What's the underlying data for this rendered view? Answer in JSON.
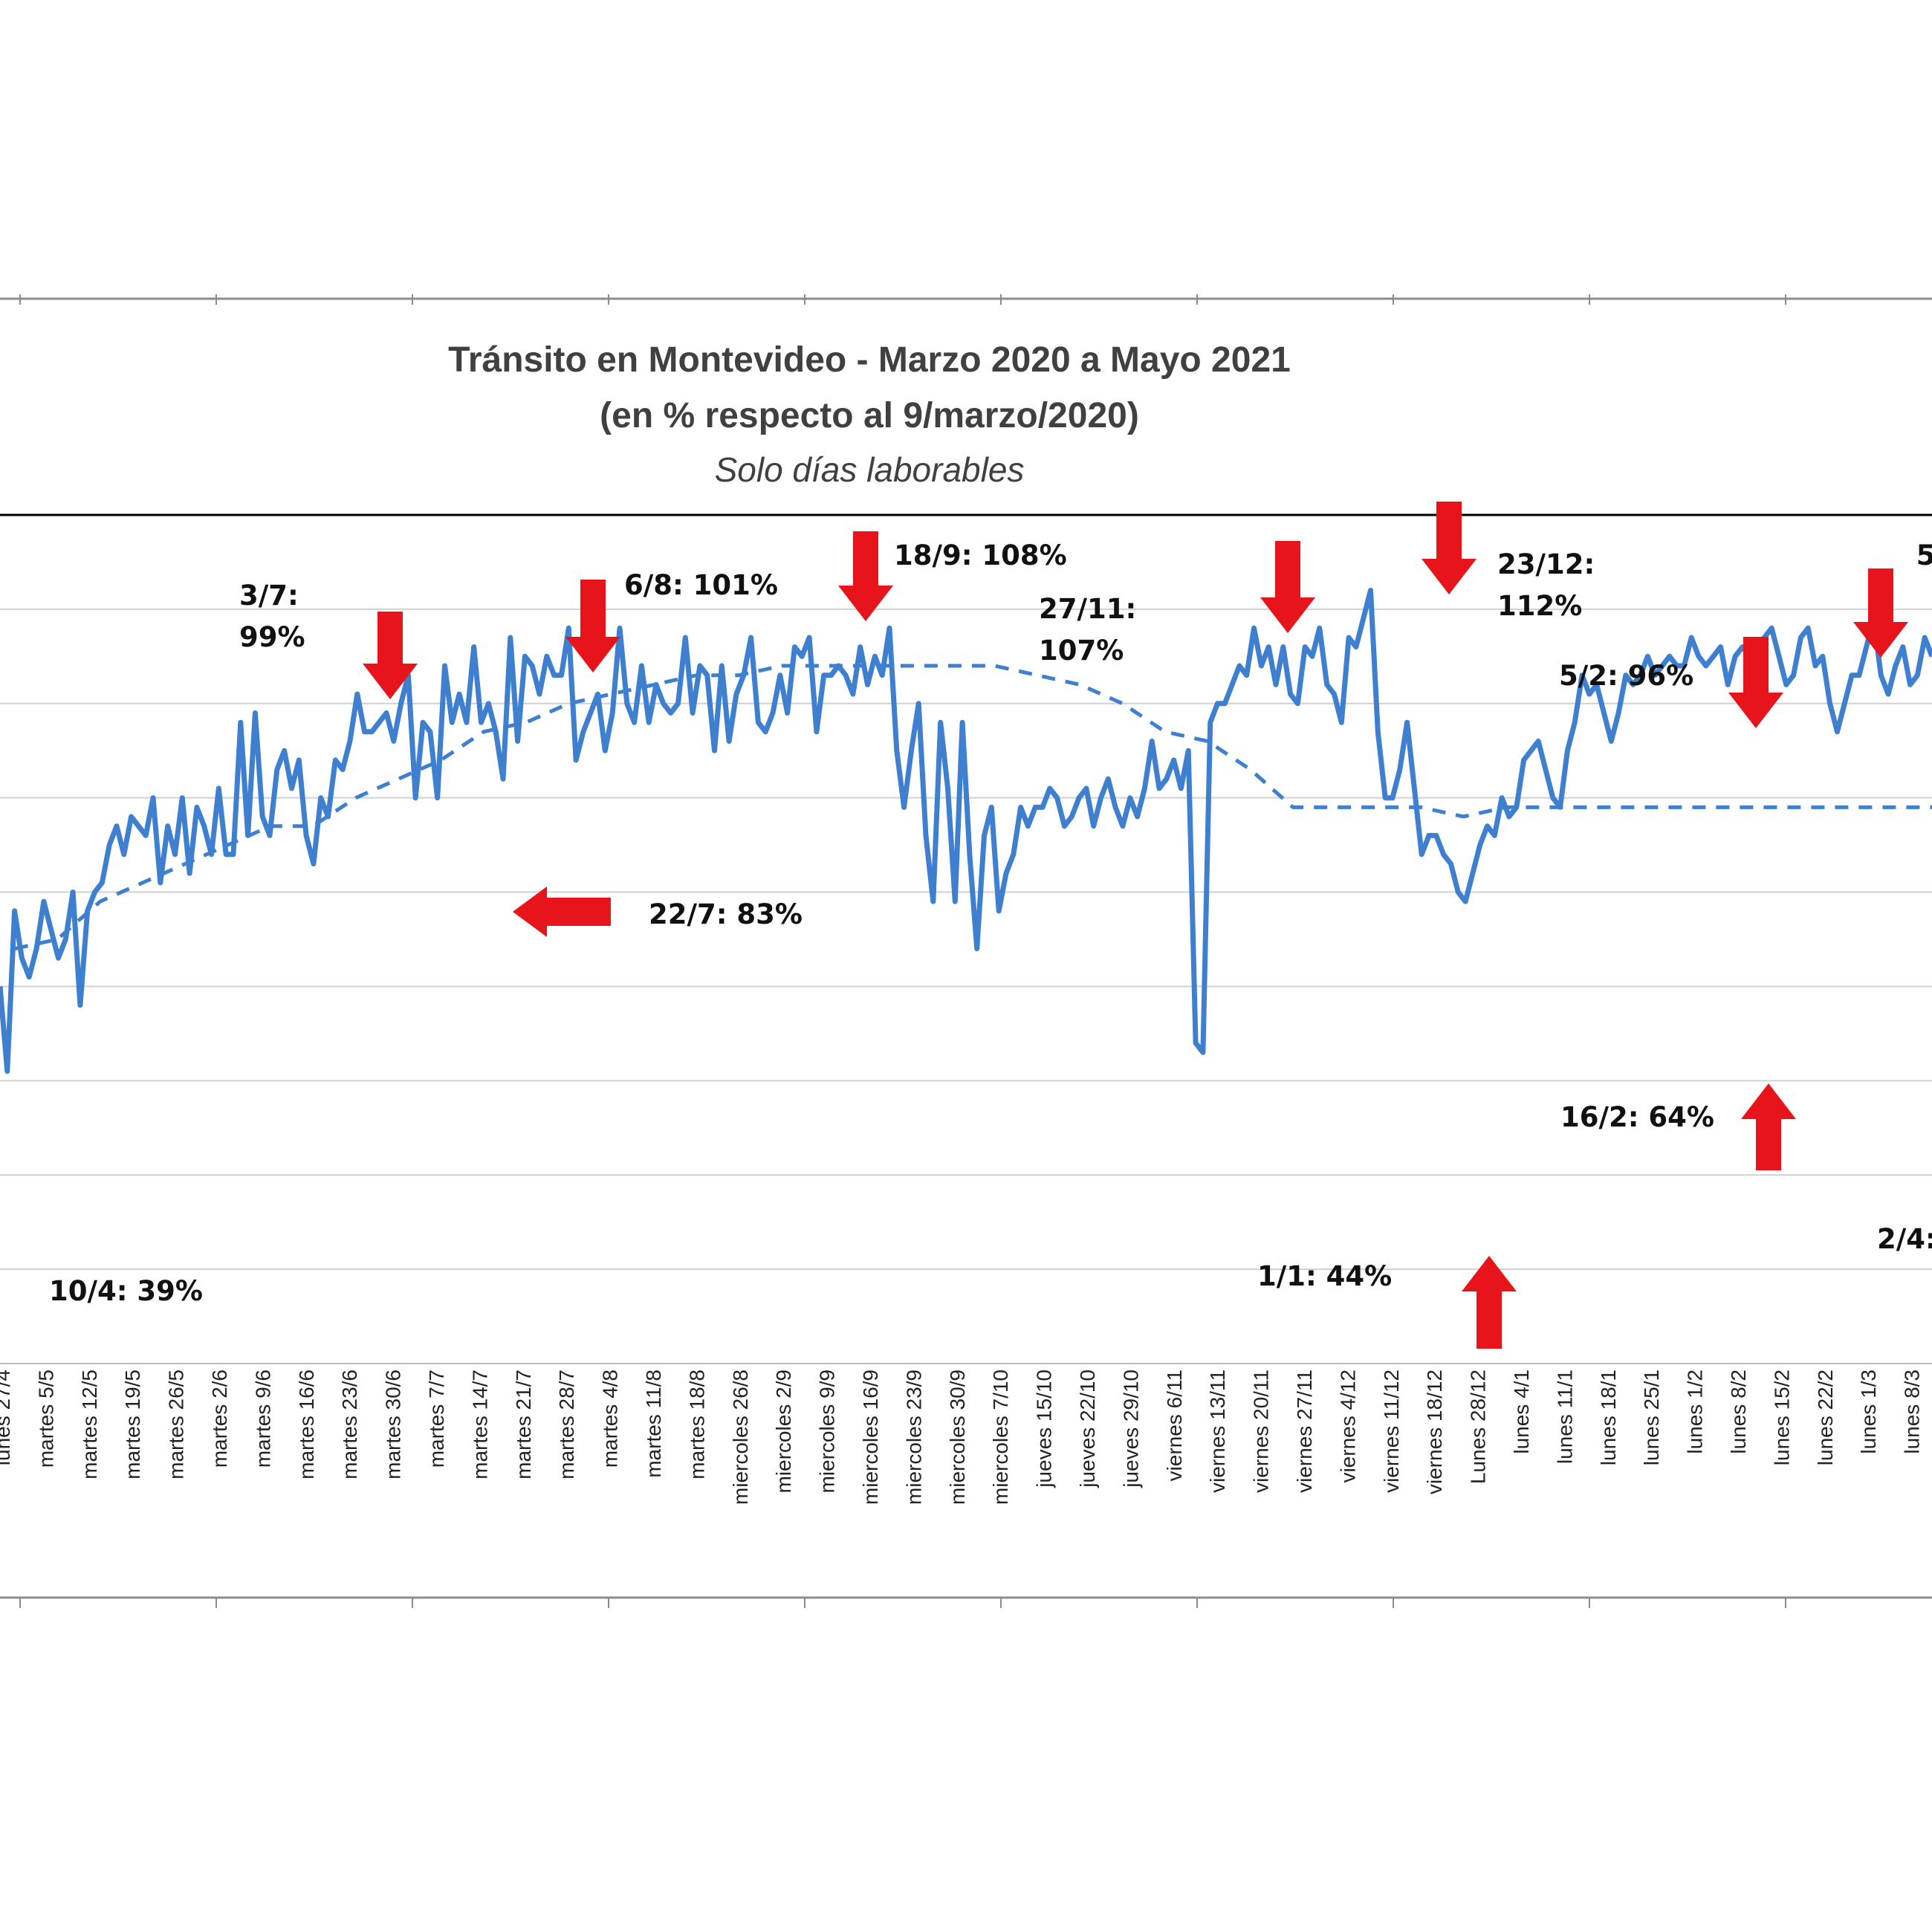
{
  "chart_data": {
    "type": "line",
    "title": "Tránsito en Montevideo - Marzo 2020 a Mayo 2021",
    "subtitle": "(en % respecto al 9/marzo/2020)",
    "subtitle2": "Solo días laborables",
    "ylim": [
      30,
      120
    ],
    "grid": true,
    "colors": {
      "series": "#3f7fcf",
      "trend": "#3f7fcf",
      "arrow": "#e8141b",
      "grid": "#d0d0d0"
    },
    "x_labels": [
      "lunes 27/4",
      "martes 5/5",
      "martes 12/5",
      "martes 19/5",
      "martes 26/5",
      "martes 2/6",
      "martes 9/6",
      "martes 16/6",
      "martes 23/6",
      "martes 30/6",
      "martes 7/7",
      "martes 14/7",
      "martes 21/7",
      "martes 28/7",
      "martes 4/8",
      "martes 11/8",
      "martes 18/8",
      "miercoles 26/8",
      "miercoles 2/9",
      "miercoles 9/9",
      "miercoles 16/9",
      "miercoles 23/9",
      "miercoles 30/9",
      "miercoles 7/10",
      "jueves 15/10",
      "jueves 22/10",
      "jueves 29/10",
      "viernes 6/11",
      "viernes 13/11",
      "viernes 20/11",
      "viernes 27/11",
      "viernes 4/12",
      "viernes 11/12",
      "viernes 18/12",
      "Lunes 28/12",
      "lunes 4/1",
      "lunes 11/1",
      "lunes 18/1",
      "lunes 25/1",
      "lunes 1/2",
      "lunes 8/2",
      "lunes 15/2",
      "lunes 22/2",
      "lunes 1/3",
      "lunes 8/3"
    ],
    "series": [
      {
        "values": [
          70,
          61,
          78,
          73,
          71,
          74,
          79,
          76,
          73,
          75,
          80,
          68,
          78,
          80,
          81,
          85,
          87,
          84,
          88,
          87,
          86,
          90,
          81,
          87,
          84,
          90,
          82,
          89,
          87,
          84,
          91,
          84,
          84,
          98,
          86,
          99,
          88,
          86,
          93,
          95,
          91,
          94,
          86,
          83,
          90,
          88,
          94,
          93,
          96,
          101,
          97,
          97,
          98,
          99,
          96,
          100,
          103,
          90,
          98,
          97,
          90,
          104,
          98,
          101,
          98,
          106,
          98,
          100,
          97,
          92,
          107,
          96,
          105,
          104,
          101,
          105,
          103,
          103,
          108,
          94,
          97,
          99,
          101,
          95,
          99,
          108,
          100,
          98,
          104,
          98,
          102,
          100,
          99,
          100,
          107,
          99,
          104,
          103,
          95,
          104,
          96,
          101,
          103,
          107,
          98,
          97,
          99,
          103,
          99,
          106,
          105,
          107,
          97,
          103,
          103,
          104,
          103,
          101,
          106,
          102,
          105,
          103,
          108,
          95,
          89,
          95,
          100,
          86,
          79,
          98,
          91,
          79,
          98,
          84,
          74,
          86,
          89,
          78,
          82,
          84,
          89,
          87,
          89,
          89,
          91,
          90,
          87,
          88,
          90,
          91,
          87,
          90,
          92,
          89,
          87,
          90,
          88,
          91,
          96,
          91,
          92,
          94,
          91,
          95,
          64,
          63,
          98,
          100,
          100,
          102,
          104,
          103,
          108,
          104,
          106,
          102,
          106,
          101,
          100,
          106,
          105,
          108,
          102,
          101,
          98,
          107,
          106,
          109,
          112,
          97,
          90,
          90,
          93,
          98,
          91,
          84,
          86,
          86,
          84,
          83,
          80,
          79,
          82,
          85,
          87,
          86,
          90,
          88,
          89,
          94,
          95,
          96,
          93,
          90,
          89,
          95,
          98,
          103,
          101,
          102,
          99,
          96,
          99,
          103,
          102,
          103,
          105,
          103,
          104,
          105,
          104,
          104,
          107,
          105,
          104,
          105,
          106,
          102,
          105,
          106,
          105,
          106,
          107,
          108,
          105,
          102,
          103,
          107,
          108,
          104,
          105,
          100,
          97,
          100,
          103,
          103,
          106,
          109,
          103,
          101,
          104,
          106,
          102,
          103,
          107,
          105
        ]
      },
      {
        "values": [
          74,
          75,
          79,
          81,
          83,
          85,
          87,
          87,
          90,
          92,
          94,
          97,
          98,
          100,
          101,
          102,
          103,
          103,
          104,
          104,
          104,
          104,
          104,
          104,
          103,
          102,
          100,
          97,
          96,
          93,
          89,
          89,
          89,
          89,
          88,
          89,
          89,
          89,
          89,
          89,
          89,
          89,
          89,
          89,
          89,
          89
        ]
      }
    ],
    "annotations": [
      {
        "label": "10/4: 39%",
        "direction": "none"
      },
      {
        "label": "3/7:",
        "label2": "99%",
        "direction": "down"
      },
      {
        "label": "22/7: 83%",
        "direction": "left"
      },
      {
        "label": "6/8: 101%",
        "direction": "down"
      },
      {
        "label": "18/9: 108%",
        "direction": "down"
      },
      {
        "label": "27/11:",
        "label2": "107%",
        "direction": "down"
      },
      {
        "label": "23/12:",
        "label2": "112%",
        "direction": "down"
      },
      {
        "label": "1/1: 44%",
        "direction": "up"
      },
      {
        "label": "5/2: 96%",
        "direction": "down"
      },
      {
        "label": "16/2: 64%",
        "direction": "up"
      },
      {
        "label": "5/",
        "direction": "down"
      },
      {
        "label": "2/4:",
        "direction": "none"
      }
    ]
  }
}
